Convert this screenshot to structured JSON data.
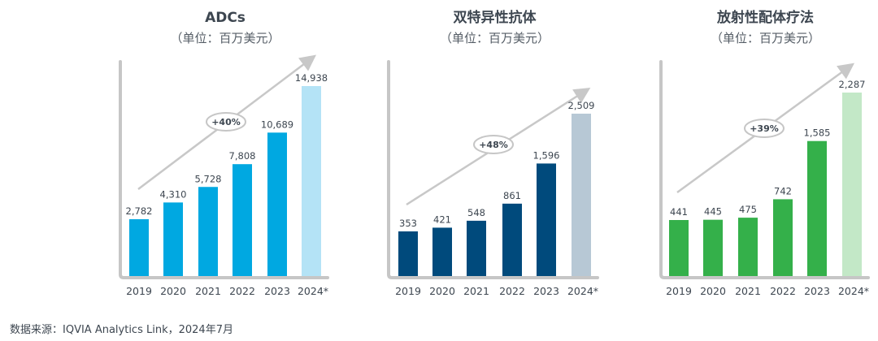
{
  "chart_data": [
    {
      "type": "bar",
      "title": "ADCs",
      "subtitle": "（单位：百万美元）",
      "categories": [
        "2019",
        "2020",
        "2021",
        "2022",
        "2023",
        "2024*"
      ],
      "values": [
        2782,
        4310,
        5728,
        7808,
        10689,
        14938
      ],
      "value_labels": [
        "2,782",
        "4,310",
        "5,728",
        "7,808",
        "10,689",
        "14,938"
      ],
      "growth_label": "+40%",
      "color": "#00a8e1",
      "forecast_color": "#b4e3f6"
    },
    {
      "type": "bar",
      "title": "双特异性抗体",
      "subtitle": "（单位：百万美元）",
      "categories": [
        "2019",
        "2020",
        "2021",
        "2022",
        "2023",
        "2024*"
      ],
      "values": [
        353,
        421,
        548,
        861,
        1596,
        2509
      ],
      "value_labels": [
        "353",
        "421",
        "548",
        "861",
        "1,596",
        "2,509"
      ],
      "growth_label": "+48%",
      "color": "#004a7c",
      "forecast_color": "#b7c8d5"
    },
    {
      "type": "bar",
      "title": "放射性配体疗法",
      "subtitle": "（单位：百万美元）",
      "categories": [
        "2019",
        "2020",
        "2021",
        "2022",
        "2023",
        "2024*"
      ],
      "values": [
        441,
        445,
        475,
        742,
        1585,
        2287
      ],
      "value_labels": [
        "441",
        "445",
        "475",
        "742",
        "1,585",
        "2,287"
      ],
      "growth_label": "+39%",
      "color": "#34b04a",
      "forecast_color": "#c3e8c7"
    }
  ],
  "footer": "数据来源：IQVIA Analytics Link，2024年7月"
}
